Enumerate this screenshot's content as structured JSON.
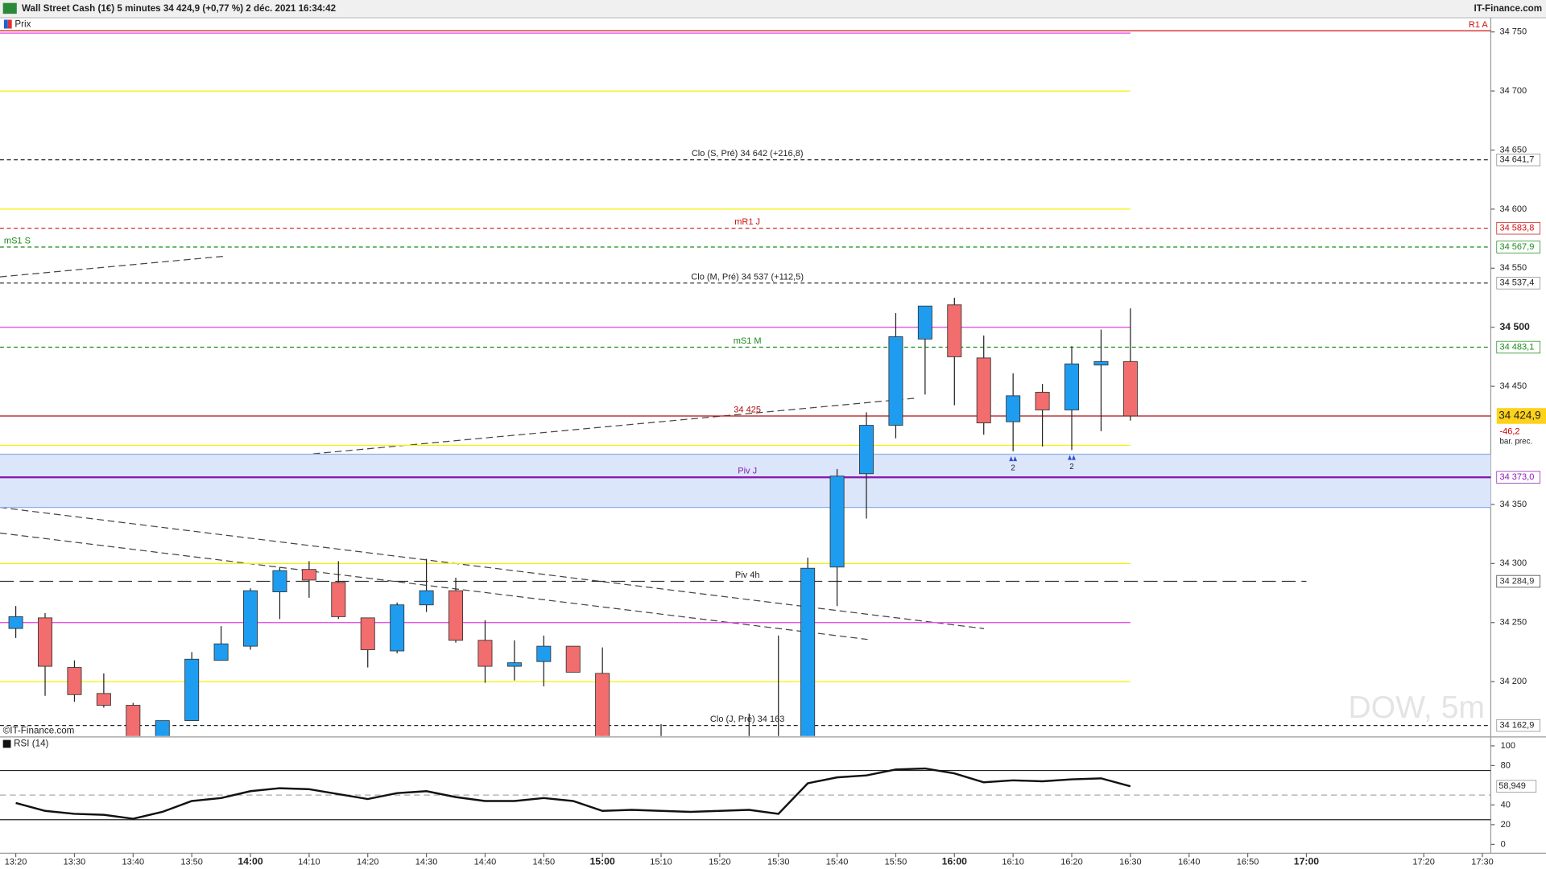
{
  "chart_data": [
    {
      "type": "candlestick",
      "title": "Wall Street Cash (1€) 5 minutes 34 424,9 (+0,77 %) 2 déc. 2021 16:34:42",
      "source": "IT-Finance.com",
      "legend": "Prix",
      "copyright": "©IT-Finance.com",
      "watermark": "DOW, 5m",
      "up_color": "#1e9cf0",
      "down_color": "#f26d6d",
      "ylim": [
        34154,
        34752
      ],
      "yticks": [
        {
          "value": 34750,
          "label": "34 750"
        },
        {
          "value": 34700,
          "label": "34 700"
        },
        {
          "value": 34650,
          "label": "34 650"
        },
        {
          "value": 34600,
          "label": "34 600"
        },
        {
          "value": 34550,
          "label": "34 550"
        },
        {
          "value": 34500,
          "label": "34 500"
        },
        {
          "value": 34450,
          "label": "34 450"
        },
        {
          "value": 34350,
          "label": "34 350"
        },
        {
          "value": 34300,
          "label": "34 300"
        },
        {
          "value": 34250,
          "label": "34 250"
        },
        {
          "value": 34200,
          "label": "34 200"
        }
      ],
      "yticks_bold": [
        34500
      ],
      "xticks": [
        "13:20",
        "13:30",
        "13:40",
        "13:50",
        "14:00",
        "14:10",
        "14:20",
        "14:30",
        "14:40",
        "14:50",
        "15:00",
        "15:10",
        "15:20",
        "15:30",
        "15:40",
        "15:50",
        "16:00",
        "16:10",
        "16:20",
        "16:30",
        "16:40",
        "16:50",
        "17:00",
        "17:20",
        "17:30"
      ],
      "x": [
        "13:20",
        "13:25",
        "13:30",
        "13:35",
        "13:40",
        "13:45",
        "13:50",
        "13:55",
        "14:00",
        "14:05",
        "14:10",
        "14:15",
        "14:20",
        "14:25",
        "14:30",
        "14:35",
        "14:40",
        "14:45",
        "14:50",
        "14:55",
        "15:00",
        "15:05",
        "15:10",
        "15:15",
        "15:20",
        "15:25",
        "15:30",
        "15:35",
        "15:40",
        "15:45",
        "15:50",
        "15:55",
        "16:00",
        "16:05",
        "16:10",
        "16:15",
        "16:20",
        "16:25",
        "16:30"
      ],
      "open": [
        34245,
        34254,
        34212,
        34190,
        34180,
        34150,
        34167,
        34218,
        34230,
        34276,
        34295,
        34284,
        34254,
        34226,
        34265,
        34277,
        34235,
        34213,
        34217,
        34230,
        34207,
        null,
        34150,
        null,
        null,
        34150,
        34140,
        34140,
        34297,
        34376,
        34417,
        34490,
        34519,
        34474,
        34420,
        34445,
        34430,
        34468,
        34471
      ],
      "high": [
        34264,
        34258,
        34218,
        34207,
        34182,
        34167,
        34225,
        34247,
        34279,
        34297,
        34302,
        34302,
        34254,
        34267,
        34304,
        34288,
        34252,
        34235,
        34239,
        34230,
        34229,
        null,
        34164,
        null,
        null,
        34173,
        34239,
        34305,
        34380,
        34428,
        34512,
        34518,
        34525,
        34493,
        34461,
        34452,
        34484,
        34498,
        34516
      ],
      "low": [
        34237,
        34188,
        34183,
        34178,
        34140,
        34140,
        34167,
        34218,
        34227,
        34253,
        34271,
        34253,
        34212,
        34224,
        34259,
        34233,
        34199,
        34201,
        34196,
        34208,
        34140,
        null,
        34130,
        null,
        null,
        34130,
        34130,
        34130,
        34264,
        34338,
        34406,
        34443,
        34434,
        34409,
        34395,
        34399,
        34396,
        34412,
        34421
      ],
      "close": [
        34255,
        34213,
        34189,
        34180,
        34150,
        34167,
        34219,
        34232,
        34277,
        34294,
        34286,
        34255,
        34227,
        34265,
        34277,
        34235,
        34213,
        34216,
        34230,
        34208,
        34150,
        null,
        34140,
        null,
        null,
        34140,
        34150,
        34296,
        34374,
        34417,
        34492,
        34518,
        34475,
        34419,
        34442,
        34430,
        34469,
        34471,
        34424.9
      ],
      "band": [
        34347.5,
        34392.5
      ],
      "levels": [
        {
          "value": 34751,
          "color": "#d01010",
          "style": "solid",
          "label": "R1 A",
          "label_align": "right",
          "end": "axis"
        },
        {
          "value": 34749,
          "color": "#e040e0",
          "style": "solid"
        },
        {
          "value": 34700,
          "color": "#f2f200",
          "style": "solid"
        },
        {
          "value": 34641.7,
          "color": "#222222",
          "style": "dashed",
          "label": "Clo (S, Pré) 34 642 (+216,8)",
          "box": "34 641,7"
        },
        {
          "value": 34600,
          "color": "#f2f200",
          "style": "solid"
        },
        {
          "value": 34583.8,
          "color": "#d01010",
          "style": "dashed",
          "label": "mR1 J",
          "box": "34 583,8"
        },
        {
          "value": 34567.9,
          "color": "#1a8a1a",
          "style": "dashed",
          "label": "mS1 S",
          "label_align": "left",
          "box": "34 567,9"
        },
        {
          "value": 34537.4,
          "color": "#222222",
          "style": "dashed",
          "label": "Clo (M, Pré) 34 537 (+112,5)",
          "box": "34 537,4"
        },
        {
          "value": 34500,
          "color": "#e040e0",
          "style": "solid"
        },
        {
          "value": 34483.1,
          "color": "#1a8a1a",
          "style": "dashed",
          "label": "mS1 M",
          "box": "34 483,1"
        },
        {
          "value": 34424.9,
          "color": "#b01010",
          "style": "solid",
          "label": "34 425",
          "end": "axis"
        },
        {
          "value": 34400,
          "color": "#f2f200",
          "style": "solid"
        },
        {
          "value": 34373.0,
          "color": "#8a1ab0",
          "style": "solid",
          "weight": 2,
          "label": "Piv J",
          "box": "34 373,0"
        },
        {
          "value": 34300,
          "color": "#f2f200",
          "style": "solid"
        },
        {
          "value": 34284.9,
          "color": "#333333",
          "style": "longdash",
          "label": "Piv 4h",
          "box": "34 284,9",
          "end": "17:00"
        },
        {
          "value": 34250,
          "color": "#e040e0",
          "style": "solid"
        },
        {
          "value": 34200,
          "color": "#f2f200",
          "style": "solid"
        },
        {
          "value": 34162.9,
          "color": "#222222",
          "style": "dashed",
          "label": "Clo (J, Pré) 34 163",
          "box": "34 162,9"
        }
      ],
      "current": {
        "value": 34424.9,
        "label": "34 424,9",
        "change": "-46,2",
        "note": "bar. prec."
      },
      "markers": [
        {
          "time": "16:10",
          "label": "2"
        },
        {
          "time": "16:20",
          "label": "2"
        }
      ]
    },
    {
      "type": "line",
      "title": "RSI (14)",
      "color": "#111111",
      "ylim": [
        0,
        100
      ],
      "yticks": [
        0,
        20,
        40,
        80,
        100
      ],
      "levels": [
        75,
        50,
        25
      ],
      "x": [
        "13:20",
        "13:25",
        "13:30",
        "13:35",
        "13:40",
        "13:45",
        "13:50",
        "13:55",
        "14:00",
        "14:05",
        "14:10",
        "14:15",
        "14:20",
        "14:25",
        "14:30",
        "14:35",
        "14:40",
        "14:45",
        "14:50",
        "14:55",
        "15:00",
        "15:05",
        "15:10",
        "15:15",
        "15:20",
        "15:25",
        "15:30",
        "15:35",
        "15:40",
        "15:45",
        "15:50",
        "15:55",
        "16:00",
        "16:05",
        "16:10",
        "16:15",
        "16:20",
        "16:25",
        "16:30"
      ],
      "values": [
        42,
        34,
        31,
        30,
        26,
        33,
        44,
        47,
        54,
        57,
        56,
        51,
        46,
        52,
        54,
        48,
        44,
        44,
        47,
        44,
        34,
        35,
        34,
        33,
        34,
        35,
        31,
        62,
        68,
        70,
        76,
        77,
        72,
        63,
        65,
        64,
        66,
        67,
        58.949
      ],
      "last_label": "58,949"
    }
  ]
}
